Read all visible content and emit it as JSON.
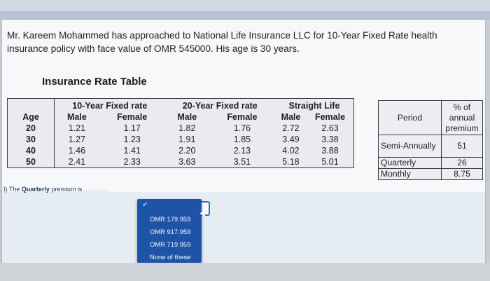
{
  "question": "Mr. Kareem Mohammed has approached to National Life Insurance LLC for 10-Year Fixed Rate health insurance policy with face value of OMR 545000. His age is 30 years.",
  "table_title": "Insurance Rate Table",
  "rate_table": {
    "group_headers": [
      "10-Year Fixed rate",
      "20-Year Fixed rate",
      "Straight Life"
    ],
    "age_label": "Age",
    "sub_headers": [
      "Male",
      "Female",
      "Male",
      "Female",
      "Male",
      "Female"
    ],
    "rows": [
      {
        "age": "20",
        "values": [
          "1.21",
          "1.17",
          "1.82",
          "1.76",
          "2.72",
          "2.63"
        ]
      },
      {
        "age": "30",
        "values": [
          "1.27",
          "1.23",
          "1.91",
          "1.85",
          "3.49",
          "3.38"
        ]
      },
      {
        "age": "40",
        "values": [
          "1.46",
          "1.41",
          "2.20",
          "2.13",
          "4.02",
          "3.88"
        ]
      },
      {
        "age": "50",
        "values": [
          "2.41",
          "2.33",
          "3.63",
          "3.51",
          "5.18",
          "5.01"
        ]
      }
    ]
  },
  "period_table": {
    "col1": "Period",
    "col2": "% of annual premium",
    "rows": [
      {
        "period": "Semi-Annually",
        "pct": "51"
      },
      {
        "period": "Quarterly",
        "pct": "26"
      },
      {
        "period": "Monthly",
        "pct": "8.75"
      }
    ]
  },
  "answer": {
    "prefix": "I) The ",
    "bold": "Quarterly",
    "suffix": " premium is",
    "dots": "..............",
    "options": [
      "OMR 179.959",
      "OMR 917.959",
      "OMR 719.959",
      "None of these"
    ],
    "check": "✓"
  }
}
